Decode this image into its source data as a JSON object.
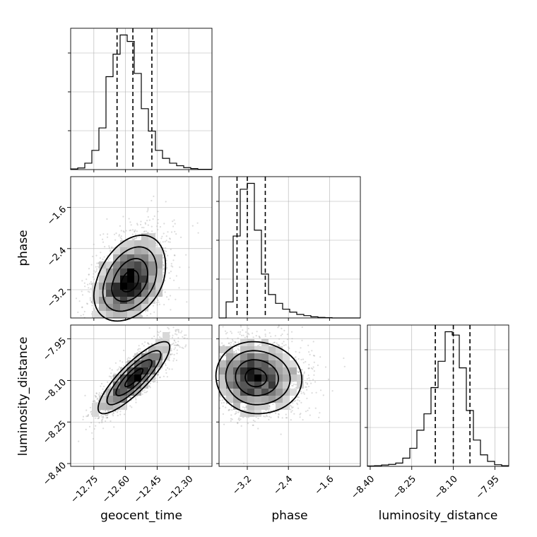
{
  "chart_data": {
    "type": "corner",
    "parameters": [
      "geocent_time",
      "phase",
      "luminosity_distance"
    ],
    "axis_labels": {
      "geocent_time": "geocent_time",
      "phase": "phase",
      "luminosity_distance": "luminosity_distance"
    },
    "ranges": {
      "geocent_time": [
        -12.86,
        -12.19
      ],
      "phase": [
        -3.75,
        -1.0
      ],
      "luminosity_distance": [
        -8.41,
        -7.9
      ]
    },
    "ticks": {
      "geocent_time": [
        -12.75,
        -12.6,
        -12.45,
        -12.3
      ],
      "phase": [
        -3.2,
        -2.4,
        -1.6
      ],
      "luminosity_distance": [
        -8.4,
        -8.25,
        -8.1,
        -7.95
      ]
    },
    "tick_labels": {
      "geocent_time": [
        "−12.75",
        "−12.60",
        "−12.45",
        "−12.30"
      ],
      "phase": [
        "−3.2",
        "−2.4",
        "−1.6"
      ],
      "luminosity_distance": [
        "−8.40",
        "−8.25",
        "−8.10",
        "−7.95"
      ]
    },
    "quantiles": {
      "geocent_time": [
        -12.64,
        -12.565,
        -12.475
      ],
      "phase": [
        -3.4,
        -3.2,
        -2.85
      ],
      "luminosity_distance": [
        -8.165,
        -8.1,
        -8.04
      ]
    },
    "histograms": {
      "geocent_time": {
        "edges": [
          -12.86,
          -12.8265,
          -12.793,
          -12.7595,
          -12.726,
          -12.6925,
          -12.659,
          -12.6255,
          -12.592,
          -12.5585,
          -12.525,
          -12.4915,
          -12.458,
          -12.4245,
          -12.391,
          -12.3575,
          -12.324,
          -12.2905,
          -12.257,
          -12.2235,
          -12.19
        ],
        "counts": [
          2,
          5,
          20,
          60,
          130,
          290,
          360,
          420,
          400,
          300,
          190,
          120,
          60,
          35,
          20,
          12,
          6,
          3,
          1,
          1
        ]
      },
      "phase": {
        "edges": [
          -3.75,
          -3.6125,
          -3.475,
          -3.3375,
          -3.2,
          -3.0625,
          -2.925,
          -2.7875,
          -2.65,
          -2.5125,
          -2.375,
          -2.2375,
          -2.1,
          -1.9625,
          -1.825,
          -1.6875,
          -1.55,
          -1.4125,
          -1.275,
          -1.1375,
          -1.0
        ],
        "counts": [
          0,
          55,
          280,
          440,
          460,
          300,
          150,
          80,
          50,
          30,
          20,
          12,
          8,
          4,
          2,
          1,
          0,
          0,
          0,
          0
        ]
      },
      "luminosity_distance": {
        "edges": [
          -8.41,
          -8.3845,
          -8.359,
          -8.3335,
          -8.308,
          -8.2825,
          -8.257,
          -8.2315,
          -8.206,
          -8.1805,
          -8.155,
          -8.1295,
          -8.104,
          -8.0785,
          -8.053,
          -8.0275,
          -8.002,
          -7.9765,
          -7.951,
          -7.9255,
          -7.9
        ],
        "counts": [
          1,
          2,
          4,
          6,
          10,
          25,
          55,
          110,
          160,
          240,
          320,
          410,
          400,
          300,
          170,
          80,
          35,
          15,
          5,
          2
        ]
      }
    },
    "joint_2d": [
      {
        "x": "geocent_time",
        "y": "phase",
        "mean": [
          -12.58,
          -3.05
        ],
        "std": [
          0.085,
          0.38
        ],
        "rho": 0.35,
        "skew_y": 0.25
      },
      {
        "x": "geocent_time",
        "y": "luminosity_distance",
        "mean": [
          -12.56,
          -8.09
        ],
        "std": [
          0.085,
          0.065
        ],
        "rho": 0.85,
        "skew_y": 0
      },
      {
        "x": "phase",
        "y": "luminosity_distance",
        "mean": [
          -3.05,
          -8.09
        ],
        "std": [
          0.38,
          0.065
        ],
        "rho": -0.05,
        "skew_x": 0.25
      }
    ]
  }
}
